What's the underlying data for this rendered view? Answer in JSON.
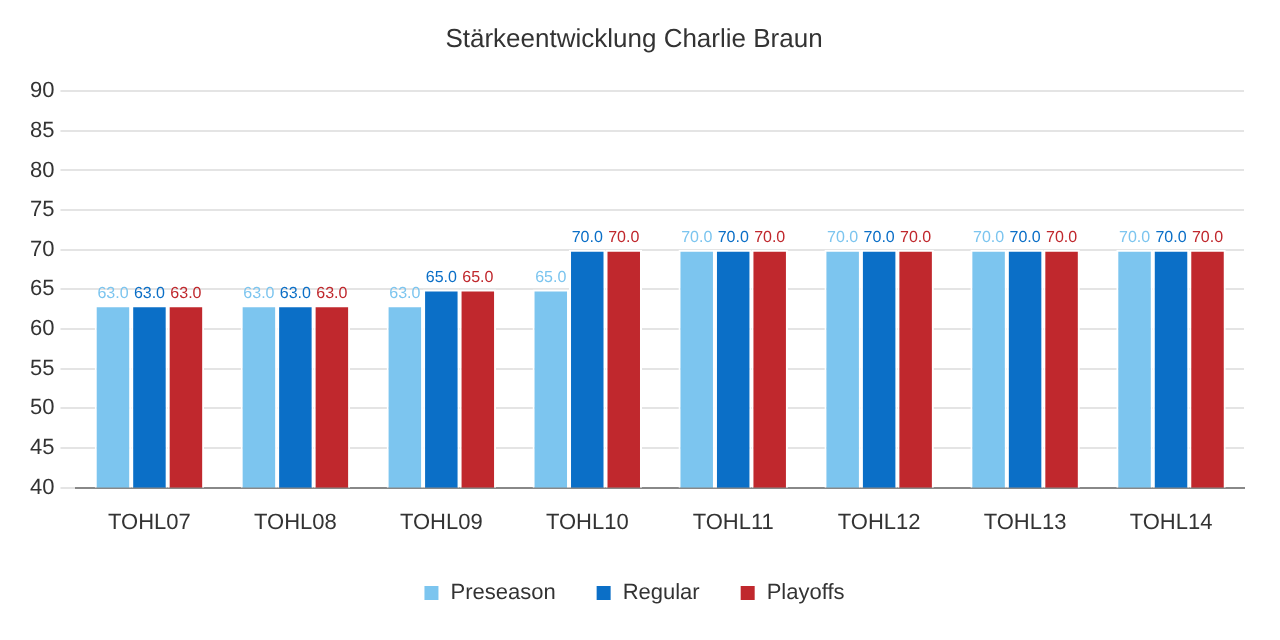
{
  "chart_data": {
    "type": "bar",
    "title": "Stärkeentwicklung Charlie Braun",
    "categories": [
      "TOHL07",
      "TOHL08",
      "TOHL09",
      "TOHL10",
      "TOHL11",
      "TOHL12",
      "TOHL13",
      "TOHL14"
    ],
    "series": [
      {
        "name": "Preseason",
        "color": "#7cc5ef",
        "values": [
          63,
          63,
          63,
          65,
          70,
          70,
          70,
          70
        ],
        "value_labels": [
          "63.0",
          "63.0",
          "63.0",
          "65.0",
          "70.0",
          "70.0",
          "70.0",
          "70.0"
        ]
      },
      {
        "name": "Regular",
        "color": "#0b6fc7",
        "values": [
          63,
          63,
          65,
          70,
          70,
          70,
          70,
          70
        ],
        "value_labels": [
          "63.0",
          "63.0",
          "65.0",
          "70.0",
          "70.0",
          "70.0",
          "70.0",
          "70.0"
        ]
      },
      {
        "name": "Playoffs",
        "color": "#c0282d",
        "values": [
          63,
          63,
          65,
          70,
          70,
          70,
          70,
          70
        ],
        "value_labels": [
          "63.0",
          "63.0",
          "65.0",
          "70.0",
          "70.0",
          "70.0",
          "70.0",
          "70.0"
        ]
      }
    ],
    "ylim": [
      40,
      90
    ],
    "yticks": [
      40,
      45,
      50,
      55,
      60,
      65,
      70,
      75,
      80,
      85,
      90
    ],
    "grid": "y",
    "legend": "bottom"
  }
}
